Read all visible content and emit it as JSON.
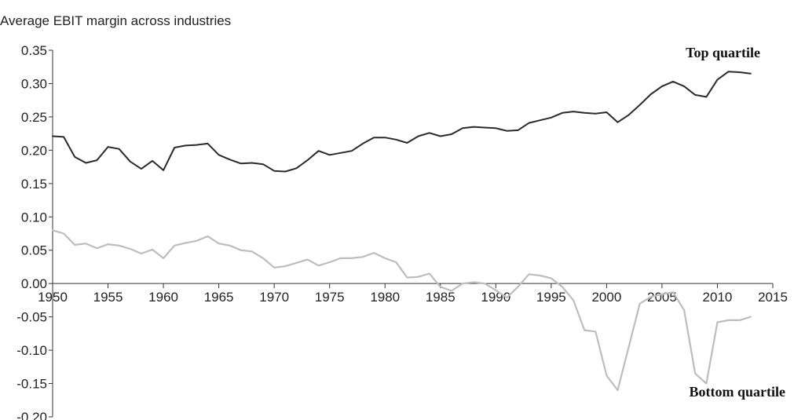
{
  "chart_data": {
    "type": "line",
    "title": "Average EBIT margin across industries",
    "xlabel": "",
    "ylabel": "",
    "xlim": [
      1950,
      2015
    ],
    "ylim": [
      -0.2,
      0.35
    ],
    "x_ticks": [
      "1950",
      "1955",
      "1960",
      "1965",
      "1970",
      "1975",
      "1980",
      "1985",
      "1990",
      "1995",
      "2000",
      "2005",
      "2010",
      "2015"
    ],
    "y_ticks": [
      "0.35",
      "0.30",
      "0.25",
      "0.20",
      "0.15",
      "0.10",
      "0.05",
      "0.00",
      "-0.05",
      "-0.10",
      "-0.15",
      "-0.20"
    ],
    "x": [
      1950,
      1951,
      1952,
      1953,
      1954,
      1955,
      1956,
      1957,
      1958,
      1959,
      1960,
      1961,
      1962,
      1963,
      1964,
      1965,
      1966,
      1967,
      1968,
      1969,
      1970,
      1971,
      1972,
      1973,
      1974,
      1975,
      1976,
      1977,
      1978,
      1979,
      1980,
      1981,
      1982,
      1983,
      1984,
      1985,
      1986,
      1987,
      1988,
      1989,
      1990,
      1991,
      1992,
      1993,
      1994,
      1995,
      1996,
      1997,
      1998,
      1999,
      2000,
      2001,
      2002,
      2003,
      2004,
      2005,
      2006,
      2007,
      2008,
      2009,
      2010,
      2011,
      2012,
      2013
    ],
    "series": [
      {
        "name": "Top quartile",
        "color": "#2a2a2a",
        "values": [
          0.221,
          0.22,
          0.19,
          0.181,
          0.185,
          0.205,
          0.202,
          0.183,
          0.172,
          0.184,
          0.17,
          0.204,
          0.207,
          0.208,
          0.21,
          0.193,
          0.186,
          0.18,
          0.181,
          0.179,
          0.169,
          0.168,
          0.173,
          0.185,
          0.199,
          0.193,
          0.196,
          0.199,
          0.21,
          0.219,
          0.219,
          0.216,
          0.211,
          0.221,
          0.226,
          0.221,
          0.224,
          0.233,
          0.235,
          0.234,
          0.233,
          0.229,
          0.23,
          0.241,
          0.245,
          0.249,
          0.256,
          0.258,
          0.256,
          0.255,
          0.257,
          0.242,
          0.253,
          0.268,
          0.284,
          0.296,
          0.303,
          0.296,
          0.283,
          0.28,
          0.306,
          0.318,
          0.317,
          0.315
        ]
      },
      {
        "name": "Bottom quartile",
        "color": "#bdbdbd",
        "values": [
          0.08,
          0.075,
          0.058,
          0.06,
          0.053,
          0.059,
          0.057,
          0.052,
          0.045,
          0.051,
          0.038,
          0.057,
          0.061,
          0.064,
          0.071,
          0.06,
          0.057,
          0.05,
          0.048,
          0.038,
          0.024,
          0.026,
          0.031,
          0.036,
          0.027,
          0.032,
          0.038,
          0.038,
          0.04,
          0.046,
          0.038,
          0.032,
          0.009,
          0.01,
          0.015,
          -0.005,
          -0.011,
          0.0,
          0.002,
          0.0,
          -0.01,
          -0.021,
          -0.005,
          0.014,
          0.012,
          0.008,
          -0.005,
          -0.025,
          -0.07,
          -0.072,
          -0.138,
          -0.16,
          -0.095,
          -0.03,
          -0.02,
          -0.016,
          -0.013,
          -0.04,
          -0.135,
          -0.15,
          -0.058,
          -0.055,
          -0.055,
          -0.05
        ]
      }
    ]
  }
}
